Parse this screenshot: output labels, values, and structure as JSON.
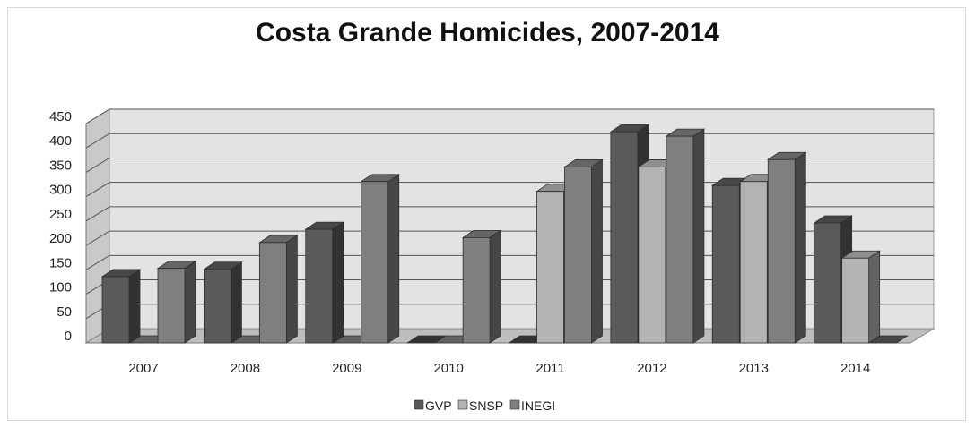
{
  "chart_data": {
    "type": "bar",
    "title": "Costa Grande Homicides, 2007-2014",
    "xlabel": "",
    "ylabel": "",
    "categories": [
      "2007",
      "2008",
      "2009",
      "2010",
      "2011",
      "2012",
      "2013",
      "2014"
    ],
    "series": [
      {
        "name": "GVP",
        "values": [
          125,
          140,
          222,
          0,
          0,
          422,
          312,
          235
        ],
        "color": "#5a5a5a"
      },
      {
        "name": "SNSP",
        "values": [
          0,
          0,
          0,
          0,
          300,
          350,
          320,
          163
        ],
        "color": "#b3b3b3"
      },
      {
        "name": "INEGI",
        "values": [
          142,
          195,
          320,
          205,
          350,
          413,
          365,
          0
        ],
        "color": "#7f7f7f"
      }
    ],
    "ylim": [
      0,
      450
    ],
    "yticks": [
      0,
      50,
      100,
      150,
      200,
      250,
      300,
      350,
      400,
      450
    ],
    "grid": true,
    "legend_position": "bottom",
    "style": "3d-clustered-column"
  }
}
